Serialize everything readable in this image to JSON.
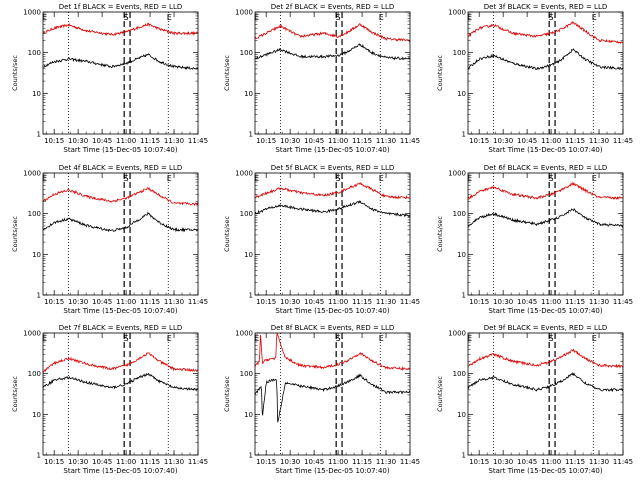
{
  "chart_data": [
    {
      "type": "line",
      "title": "Det 1f BLACK = Events, RED = LLD",
      "xlabel": "Start Time (15-Dec-05 10:07:40)",
      "ylabel": "Counts/sec",
      "ylim": [
        1,
        1000
      ],
      "yscale": "log",
      "x_ticks": [
        "10:15",
        "10:30",
        "10:45",
        "11:00",
        "11:15",
        "11:30",
        "11:45"
      ],
      "y_ticks": [
        "1",
        "10",
        "100",
        "1000"
      ],
      "markers": [
        "E",
        "S",
        "E"
      ],
      "series": [
        {
          "color": "#dd0000",
          "x": [
            10.13,
            10.25,
            10.4,
            10.6,
            10.85,
            11.0,
            11.08,
            11.23,
            11.35,
            11.5,
            11.75
          ],
          "values": [
            300,
            400,
            480,
            340,
            280,
            320,
            380,
            500,
            380,
            300,
            300
          ]
        },
        {
          "color": "#000000",
          "x": [
            10.13,
            10.25,
            10.4,
            10.6,
            10.85,
            11.0,
            11.08,
            11.23,
            11.35,
            11.5,
            11.75
          ],
          "values": [
            45,
            60,
            70,
            60,
            45,
            55,
            65,
            90,
            60,
            45,
            40
          ]
        }
      ]
    },
    {
      "type": "line",
      "title": "Det 2f BLACK = Events, RED = LLD",
      "xlabel": "Start Time (15-Dec-05 10:07:40)",
      "ylabel": "Counts/sec",
      "ylim": [
        1,
        1000
      ],
      "yscale": "log",
      "x_ticks": [
        "10:15",
        "10:30",
        "10:45",
        "11:00",
        "11:15",
        "11:30",
        "11:45"
      ],
      "y_ticks": [
        "1",
        "10",
        "100",
        "1000"
      ],
      "markers": [
        "E",
        "S",
        "E"
      ],
      "series": [
        {
          "color": "#dd0000",
          "x": [
            10.13,
            10.25,
            10.4,
            10.6,
            10.85,
            11.0,
            11.08,
            11.23,
            11.35,
            11.5,
            11.75
          ],
          "values": [
            220,
            300,
            450,
            250,
            300,
            250,
            300,
            500,
            320,
            220,
            200
          ]
        },
        {
          "color": "#000000",
          "x": [
            10.13,
            10.25,
            10.4,
            10.6,
            10.85,
            11.0,
            11.08,
            11.23,
            11.35,
            11.5,
            11.75
          ],
          "values": [
            70,
            90,
            120,
            80,
            80,
            85,
            100,
            160,
            100,
            75,
            70
          ]
        }
      ]
    },
    {
      "type": "line",
      "title": "Det 3f BLACK = Events, RED = LLD",
      "xlabel": "Start Time (15-Dec-05 10:07:40)",
      "ylabel": "Counts/sec",
      "ylim": [
        1,
        1000
      ],
      "yscale": "log",
      "x_ticks": [
        "10:15",
        "10:30",
        "10:45",
        "11:00",
        "11:15",
        "11:30",
        "11:45"
      ],
      "y_ticks": [
        "1",
        "10",
        "100",
        "1000"
      ],
      "markers": [
        "E",
        "S",
        "E"
      ],
      "series": [
        {
          "color": "#dd0000",
          "x": [
            10.13,
            10.25,
            10.4,
            10.6,
            10.85,
            11.0,
            11.08,
            11.23,
            11.35,
            11.5,
            11.75
          ],
          "values": [
            250,
            400,
            480,
            300,
            250,
            300,
            350,
            550,
            350,
            200,
            180
          ]
        },
        {
          "color": "#000000",
          "x": [
            10.13,
            10.25,
            10.4,
            10.6,
            10.85,
            11.0,
            11.08,
            11.23,
            11.35,
            11.5,
            11.75
          ],
          "values": [
            40,
            70,
            85,
            55,
            40,
            50,
            60,
            120,
            70,
            45,
            40
          ]
        }
      ]
    },
    {
      "type": "line",
      "title": "Det 4f BLACK = Events, RED = LLD",
      "xlabel": "Start Time (15-Dec-05 10:07:40)",
      "ylabel": "Counts/sec",
      "ylim": [
        1,
        1000
      ],
      "yscale": "log",
      "x_ticks": [
        "10:15",
        "10:30",
        "10:45",
        "11:00",
        "11:15",
        "11:30",
        "11:45"
      ],
      "y_ticks": [
        "1",
        "10",
        "100",
        "1000"
      ],
      "markers": [
        "E",
        "S",
        "E"
      ],
      "series": [
        {
          "color": "#dd0000",
          "x": [
            10.13,
            10.25,
            10.4,
            10.6,
            10.85,
            11.0,
            11.08,
            11.23,
            11.35,
            11.5,
            11.75
          ],
          "values": [
            200,
            300,
            380,
            260,
            200,
            240,
            290,
            420,
            280,
            180,
            170
          ]
        },
        {
          "color": "#000000",
          "x": [
            10.13,
            10.25,
            10.4,
            10.6,
            10.85,
            11.0,
            11.08,
            11.23,
            11.35,
            11.5,
            11.75
          ],
          "values": [
            40,
            60,
            75,
            50,
            38,
            45,
            60,
            100,
            60,
            40,
            40
          ]
        }
      ]
    },
    {
      "type": "line",
      "title": "Det 5f BLACK = Events, RED = LLD",
      "xlabel": "Start Time (15-Dec-05 10:07:40)",
      "ylabel": "Counts/sec",
      "ylim": [
        1,
        1000
      ],
      "yscale": "log",
      "x_ticks": [
        "10:15",
        "10:30",
        "10:45",
        "11:00",
        "11:15",
        "11:30",
        "11:45"
      ],
      "y_ticks": [
        "1",
        "10",
        "100",
        "1000"
      ],
      "markers": [
        "E",
        "S",
        "E"
      ],
      "series": [
        {
          "color": "#dd0000",
          "x": [
            10.13,
            10.25,
            10.4,
            10.6,
            10.85,
            11.0,
            11.08,
            11.23,
            11.35,
            11.5,
            11.75
          ],
          "values": [
            250,
            320,
            420,
            330,
            280,
            330,
            400,
            550,
            400,
            260,
            250
          ]
        },
        {
          "color": "#000000",
          "x": [
            10.13,
            10.25,
            10.4,
            10.6,
            10.85,
            11.0,
            11.08,
            11.23,
            11.35,
            11.5,
            11.75
          ],
          "values": [
            100,
            130,
            160,
            130,
            110,
            130,
            150,
            200,
            130,
            100,
            90
          ]
        }
      ]
    },
    {
      "type": "line",
      "title": "Det 6f BLACK = Events, RED = LLD",
      "xlabel": "Start Time (15-Dec-05 10:07:40)",
      "ylabel": "Counts/sec",
      "ylim": [
        1,
        1000
      ],
      "yscale": "log",
      "x_ticks": [
        "10:15",
        "10:30",
        "10:45",
        "11:00",
        "11:15",
        "11:30",
        "11:45"
      ],
      "y_ticks": [
        "1",
        "10",
        "100",
        "1000"
      ],
      "markers": [
        "E",
        "S",
        "E"
      ],
      "series": [
        {
          "color": "#dd0000",
          "x": [
            10.13,
            10.25,
            10.4,
            10.6,
            10.85,
            11.0,
            11.08,
            11.23,
            11.35,
            11.5,
            11.75
          ],
          "values": [
            230,
            350,
            450,
            300,
            240,
            300,
            360,
            550,
            380,
            250,
            240
          ]
        },
        {
          "color": "#000000",
          "x": [
            10.13,
            10.25,
            10.4,
            10.6,
            10.85,
            11.0,
            11.08,
            11.23,
            11.35,
            11.5,
            11.75
          ],
          "values": [
            50,
            80,
            100,
            70,
            55,
            70,
            80,
            130,
            80,
            55,
            50
          ]
        }
      ]
    },
    {
      "type": "line",
      "title": "Det 7f BLACK = Events, RED = LLD",
      "xlabel": "Start Time (15-Dec-05 10:07:40)",
      "ylabel": "Counts/sec",
      "ylim": [
        1,
        1000
      ],
      "yscale": "log",
      "x_ticks": [
        "10:15",
        "10:30",
        "10:45",
        "11:00",
        "11:15",
        "11:30",
        "11:45"
      ],
      "y_ticks": [
        "1",
        "10",
        "100",
        "1000"
      ],
      "markers": [
        "E",
        "S",
        "E"
      ],
      "series": [
        {
          "color": "#dd0000",
          "x": [
            10.13,
            10.25,
            10.4,
            10.6,
            10.85,
            11.0,
            11.08,
            11.23,
            11.35,
            11.5,
            11.75
          ],
          "values": [
            110,
            180,
            240,
            170,
            130,
            160,
            200,
            320,
            200,
            130,
            120
          ]
        },
        {
          "color": "#000000",
          "x": [
            10.13,
            10.25,
            10.4,
            10.6,
            10.85,
            11.0,
            11.08,
            11.23,
            11.35,
            11.5,
            11.75
          ],
          "values": [
            45,
            70,
            80,
            60,
            45,
            55,
            70,
            100,
            65,
            45,
            40
          ]
        }
      ]
    },
    {
      "type": "line",
      "title": "Det 8f BLACK = Events, RED = LLD",
      "xlabel": "Start Time (15-Dec-05 10:07:40)",
      "ylabel": "Counts/sec",
      "ylim": [
        1,
        1000
      ],
      "yscale": "log",
      "x_ticks": [
        "10:15",
        "10:30",
        "10:45",
        "11:00",
        "11:15",
        "11:30",
        "11:45"
      ],
      "y_ticks": [
        "1",
        "10",
        "100",
        "1000"
      ],
      "markers": [
        "E",
        "S",
        "E"
      ],
      "series": [
        {
          "color": "#dd0000",
          "x": [
            10.13,
            10.18,
            10.19,
            10.21,
            10.25,
            10.35,
            10.36,
            10.45,
            10.6,
            10.85,
            11.0,
            11.08,
            11.23,
            11.35,
            11.5,
            11.75
          ],
          "values": [
            150,
            200,
            1000,
            180,
            220,
            240,
            1000,
            250,
            160,
            140,
            170,
            200,
            320,
            210,
            140,
            130
          ]
        },
        {
          "color": "#000000",
          "x": [
            10.13,
            10.2,
            10.21,
            10.25,
            10.3,
            10.36,
            10.37,
            10.45,
            10.6,
            10.85,
            11.0,
            11.08,
            11.23,
            11.35,
            11.5,
            11.75
          ],
          "values": [
            30,
            50,
            8,
            60,
            70,
            70,
            6,
            60,
            50,
            40,
            50,
            60,
            90,
            55,
            35,
            35
          ]
        }
      ]
    },
    {
      "type": "line",
      "title": "Det 9f BLACK = Events, RED = LLD",
      "xlabel": "Start Time (15-Dec-05 10:07:40)",
      "ylabel": "Counts/sec",
      "ylim": [
        1,
        1000
      ],
      "yscale": "log",
      "x_ticks": [
        "10:15",
        "10:30",
        "10:45",
        "11:00",
        "11:15",
        "11:30",
        "11:45"
      ],
      "y_ticks": [
        "1",
        "10",
        "100",
        "1000"
      ],
      "markers": [
        "E",
        "S",
        "E"
      ],
      "series": [
        {
          "color": "#dd0000",
          "x": [
            10.13,
            10.25,
            10.4,
            10.6,
            10.85,
            11.0,
            11.08,
            11.23,
            11.35,
            11.5,
            11.75
          ],
          "values": [
            150,
            230,
            300,
            200,
            160,
            200,
            240,
            380,
            240,
            160,
            150
          ]
        },
        {
          "color": "#000000",
          "x": [
            10.13,
            10.25,
            10.4,
            10.6,
            10.85,
            11.0,
            11.08,
            11.23,
            11.35,
            11.5,
            11.75
          ],
          "values": [
            45,
            70,
            80,
            55,
            40,
            50,
            60,
            100,
            60,
            40,
            40
          ]
        }
      ]
    }
  ]
}
